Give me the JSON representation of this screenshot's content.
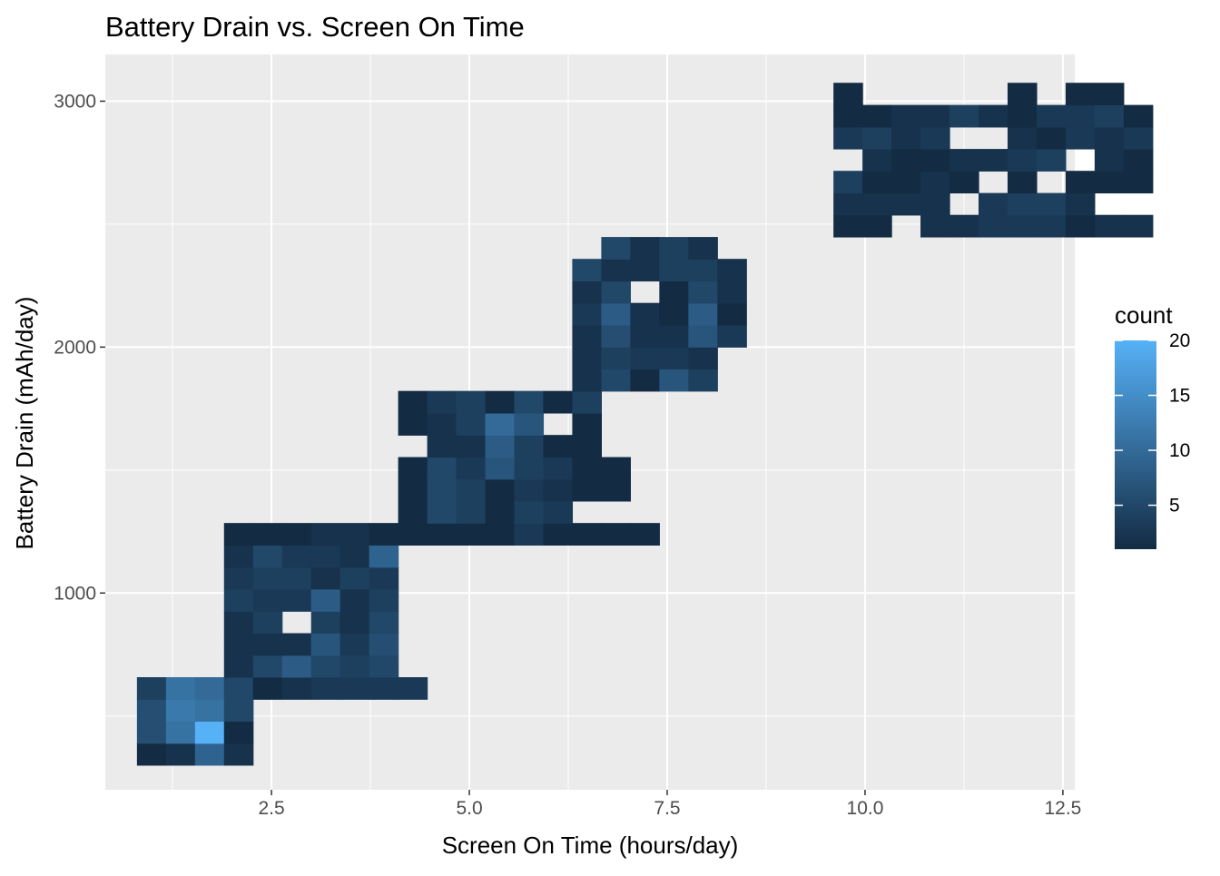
{
  "chart_data": {
    "type": "heatmap",
    "title": "Battery Drain vs. Screen On Time",
    "xlabel": "Screen On Time (hours/day)",
    "ylabel": "Battery Drain (mAh/day)",
    "xlim": [
      0.4,
      12.65
    ],
    "ylim": [
      200,
      3190
    ],
    "x_ticks": [
      2.5,
      5.0,
      7.5,
      10.0,
      12.5
    ],
    "x_tick_labels": [
      "2.5",
      "5.0",
      "7.5",
      "10.0",
      "12.5"
    ],
    "y_ticks": [
      1000,
      2000,
      3000
    ],
    "y_tick_labels": [
      "1000",
      "2000",
      "3000"
    ],
    "grid": true,
    "bin_width_x": 0.3667,
    "bin_width_y": 89.5,
    "x_bin_start": 0.8,
    "y_bin_start": 300,
    "legend": {
      "title": "count",
      "placement": "right",
      "min": 1,
      "max": 20,
      "breaks": [
        5,
        10,
        15,
        20
      ],
      "break_labels": [
        "5",
        "10",
        "15",
        "20"
      ],
      "low_color": "#132B43",
      "high_color": "#56B1F7"
    },
    "rows": [
      {
        "y": 345,
        "cells": [
          [
            0,
            1
          ],
          [
            1,
            2
          ],
          [
            2,
            9
          ],
          [
            3,
            2
          ]
        ]
      },
      {
        "y": 434,
        "cells": [
          [
            0,
            6
          ],
          [
            1,
            11
          ],
          [
            2,
            20
          ],
          [
            3,
            1
          ]
        ]
      },
      {
        "y": 524,
        "cells": [
          [
            0,
            6
          ],
          [
            1,
            12
          ],
          [
            2,
            11
          ],
          [
            3,
            5
          ]
        ]
      },
      {
        "y": 613,
        "cells": [
          [
            0,
            4
          ],
          [
            1,
            11
          ],
          [
            2,
            10
          ],
          [
            3,
            5
          ],
          [
            4,
            1
          ],
          [
            5,
            2
          ],
          [
            6,
            3
          ],
          [
            7,
            3
          ],
          [
            8,
            3
          ],
          [
            9,
            3
          ]
        ]
      },
      {
        "y": 703,
        "cells": [
          [
            3,
            2
          ],
          [
            4,
            5
          ],
          [
            5,
            8
          ],
          [
            6,
            5
          ],
          [
            7,
            4
          ],
          [
            8,
            5
          ]
        ]
      },
      {
        "y": 792,
        "cells": [
          [
            3,
            2
          ],
          [
            4,
            2
          ],
          [
            5,
            2
          ],
          [
            6,
            7
          ],
          [
            7,
            3
          ],
          [
            8,
            6
          ]
        ]
      },
      {
        "y": 882,
        "cells": [
          [
            3,
            2
          ],
          [
            4,
            4
          ],
          [
            6,
            4
          ],
          [
            7,
            2
          ],
          [
            8,
            5
          ]
        ]
      },
      {
        "y": 971,
        "cells": [
          [
            3,
            4
          ],
          [
            4,
            3
          ],
          [
            5,
            3
          ],
          [
            6,
            8
          ],
          [
            7,
            2
          ],
          [
            8,
            4
          ]
        ]
      },
      {
        "y": 1061,
        "cells": [
          [
            3,
            3
          ],
          [
            4,
            4
          ],
          [
            5,
            4
          ],
          [
            6,
            2
          ],
          [
            7,
            4
          ],
          [
            8,
            3
          ]
        ]
      },
      {
        "y": 1150,
        "cells": [
          [
            3,
            2
          ],
          [
            4,
            5
          ],
          [
            5,
            3
          ],
          [
            6,
            3
          ],
          [
            7,
            2
          ],
          [
            8,
            9
          ]
        ]
      },
      {
        "y": 1240,
        "cells": [
          [
            3,
            1
          ],
          [
            4,
            1
          ],
          [
            5,
            1
          ],
          [
            6,
            2
          ],
          [
            7,
            2
          ],
          [
            8,
            1
          ],
          [
            9,
            1
          ],
          [
            10,
            1
          ],
          [
            11,
            1
          ],
          [
            12,
            1
          ],
          [
            13,
            3
          ],
          [
            14,
            1
          ],
          [
            15,
            1
          ],
          [
            16,
            1
          ],
          [
            17,
            1
          ]
        ]
      },
      {
        "y": 1329,
        "cells": [
          [
            9,
            1
          ],
          [
            10,
            5
          ],
          [
            11,
            4
          ],
          [
            12,
            1
          ],
          [
            13,
            4
          ],
          [
            14,
            3
          ]
        ]
      },
      {
        "y": 1419,
        "cells": [
          [
            9,
            1
          ],
          [
            10,
            5
          ],
          [
            11,
            4
          ],
          [
            12,
            1
          ],
          [
            13,
            3
          ],
          [
            14,
            2
          ],
          [
            15,
            1
          ],
          [
            16,
            1
          ]
        ]
      },
      {
        "y": 1508,
        "cells": [
          [
            9,
            1
          ],
          [
            10,
            5
          ],
          [
            11,
            3
          ],
          [
            12,
            7
          ],
          [
            13,
            4
          ],
          [
            14,
            3
          ],
          [
            15,
            1
          ],
          [
            16,
            1
          ]
        ]
      },
      {
        "y": 1598,
        "cells": [
          [
            10,
            2
          ],
          [
            11,
            2
          ],
          [
            12,
            8
          ],
          [
            13,
            4
          ],
          [
            14,
            1
          ],
          [
            15,
            1
          ]
        ]
      },
      {
        "y": 1687,
        "cells": [
          [
            9,
            1
          ],
          [
            10,
            2
          ],
          [
            11,
            4
          ],
          [
            12,
            10
          ],
          [
            13,
            7
          ],
          [
            15,
            1
          ]
        ]
      },
      {
        "y": 1777,
        "cells": [
          [
            9,
            1
          ],
          [
            10,
            3
          ],
          [
            11,
            4
          ],
          [
            12,
            1
          ],
          [
            13,
            5
          ],
          [
            14,
            1
          ],
          [
            15,
            4
          ]
        ]
      },
      {
        "y": 1866,
        "cells": [
          [
            15,
            2
          ],
          [
            16,
            5
          ],
          [
            17,
            1
          ],
          [
            18,
            7
          ],
          [
            19,
            4
          ]
        ]
      },
      {
        "y": 1956,
        "cells": [
          [
            15,
            2
          ],
          [
            16,
            4
          ],
          [
            17,
            3
          ],
          [
            18,
            3
          ],
          [
            19,
            2
          ]
        ]
      },
      {
        "y": 2045,
        "cells": [
          [
            15,
            2
          ],
          [
            16,
            6
          ],
          [
            17,
            2
          ],
          [
            18,
            2
          ],
          [
            19,
            7
          ],
          [
            20,
            3
          ]
        ]
      },
      {
        "y": 2135,
        "cells": [
          [
            15,
            3
          ],
          [
            16,
            8
          ],
          [
            17,
            2
          ],
          [
            18,
            1
          ],
          [
            19,
            8
          ],
          [
            20,
            1
          ]
        ]
      },
      {
        "y": 2224,
        "cells": [
          [
            15,
            2
          ],
          [
            16,
            5
          ],
          [
            18,
            1
          ],
          [
            19,
            5
          ],
          [
            20,
            2
          ]
        ]
      },
      {
        "y": 2314,
        "cells": [
          [
            15,
            5
          ],
          [
            16,
            2
          ],
          [
            17,
            2
          ],
          [
            18,
            4
          ],
          [
            19,
            4
          ],
          [
            20,
            2
          ]
        ]
      },
      {
        "y": 2403,
        "cells": [
          [
            16,
            5
          ],
          [
            17,
            2
          ],
          [
            18,
            4
          ],
          [
            19,
            2
          ]
        ]
      },
      {
        "y": 2493,
        "cells": [
          [
            24,
            1
          ],
          [
            25,
            1
          ],
          [
            27,
            2
          ],
          [
            28,
            2
          ],
          [
            29,
            3
          ],
          [
            30,
            3
          ],
          [
            31,
            3
          ],
          [
            32,
            1
          ],
          [
            33,
            2
          ],
          [
            34,
            2
          ]
        ]
      },
      {
        "y": 2582,
        "cells": [
          [
            24,
            2
          ],
          [
            25,
            2
          ],
          [
            26,
            2
          ],
          [
            27,
            2
          ],
          [
            29,
            3
          ],
          [
            30,
            4
          ],
          [
            31,
            4
          ],
          [
            32,
            2
          ]
        ]
      },
      {
        "y": 2672,
        "cells": [
          [
            24,
            4
          ],
          [
            25,
            1
          ],
          [
            26,
            1
          ],
          [
            27,
            2
          ],
          [
            28,
            1
          ],
          [
            30,
            1
          ],
          [
            32,
            1
          ],
          [
            33,
            1
          ],
          [
            34,
            1
          ]
        ]
      },
      {
        "y": 2761,
        "cells": [
          [
            25,
            2
          ],
          [
            26,
            1
          ],
          [
            27,
            1
          ],
          [
            28,
            2
          ],
          [
            29,
            2
          ],
          [
            30,
            3
          ],
          [
            31,
            4
          ],
          [
            33,
            2
          ],
          [
            34,
            1
          ]
        ]
      },
      {
        "y": 2851,
        "cells": [
          [
            24,
            3
          ],
          [
            25,
            4
          ],
          [
            26,
            2
          ],
          [
            27,
            3
          ],
          [
            30,
            2
          ],
          [
            31,
            1
          ],
          [
            32,
            3
          ],
          [
            33,
            2
          ],
          [
            34,
            3
          ]
        ]
      },
      {
        "y": 2940,
        "cells": [
          [
            24,
            1
          ],
          [
            25,
            1
          ],
          [
            26,
            2
          ],
          [
            27,
            2
          ],
          [
            28,
            4
          ],
          [
            29,
            2
          ],
          [
            30,
            1
          ],
          [
            31,
            3
          ],
          [
            32,
            3
          ],
          [
            33,
            4
          ],
          [
            34,
            1
          ]
        ]
      },
      {
        "y": 3030,
        "cells": [
          [
            24,
            1
          ],
          [
            30,
            1
          ],
          [
            32,
            1
          ],
          [
            33,
            1
          ]
        ]
      }
    ]
  }
}
